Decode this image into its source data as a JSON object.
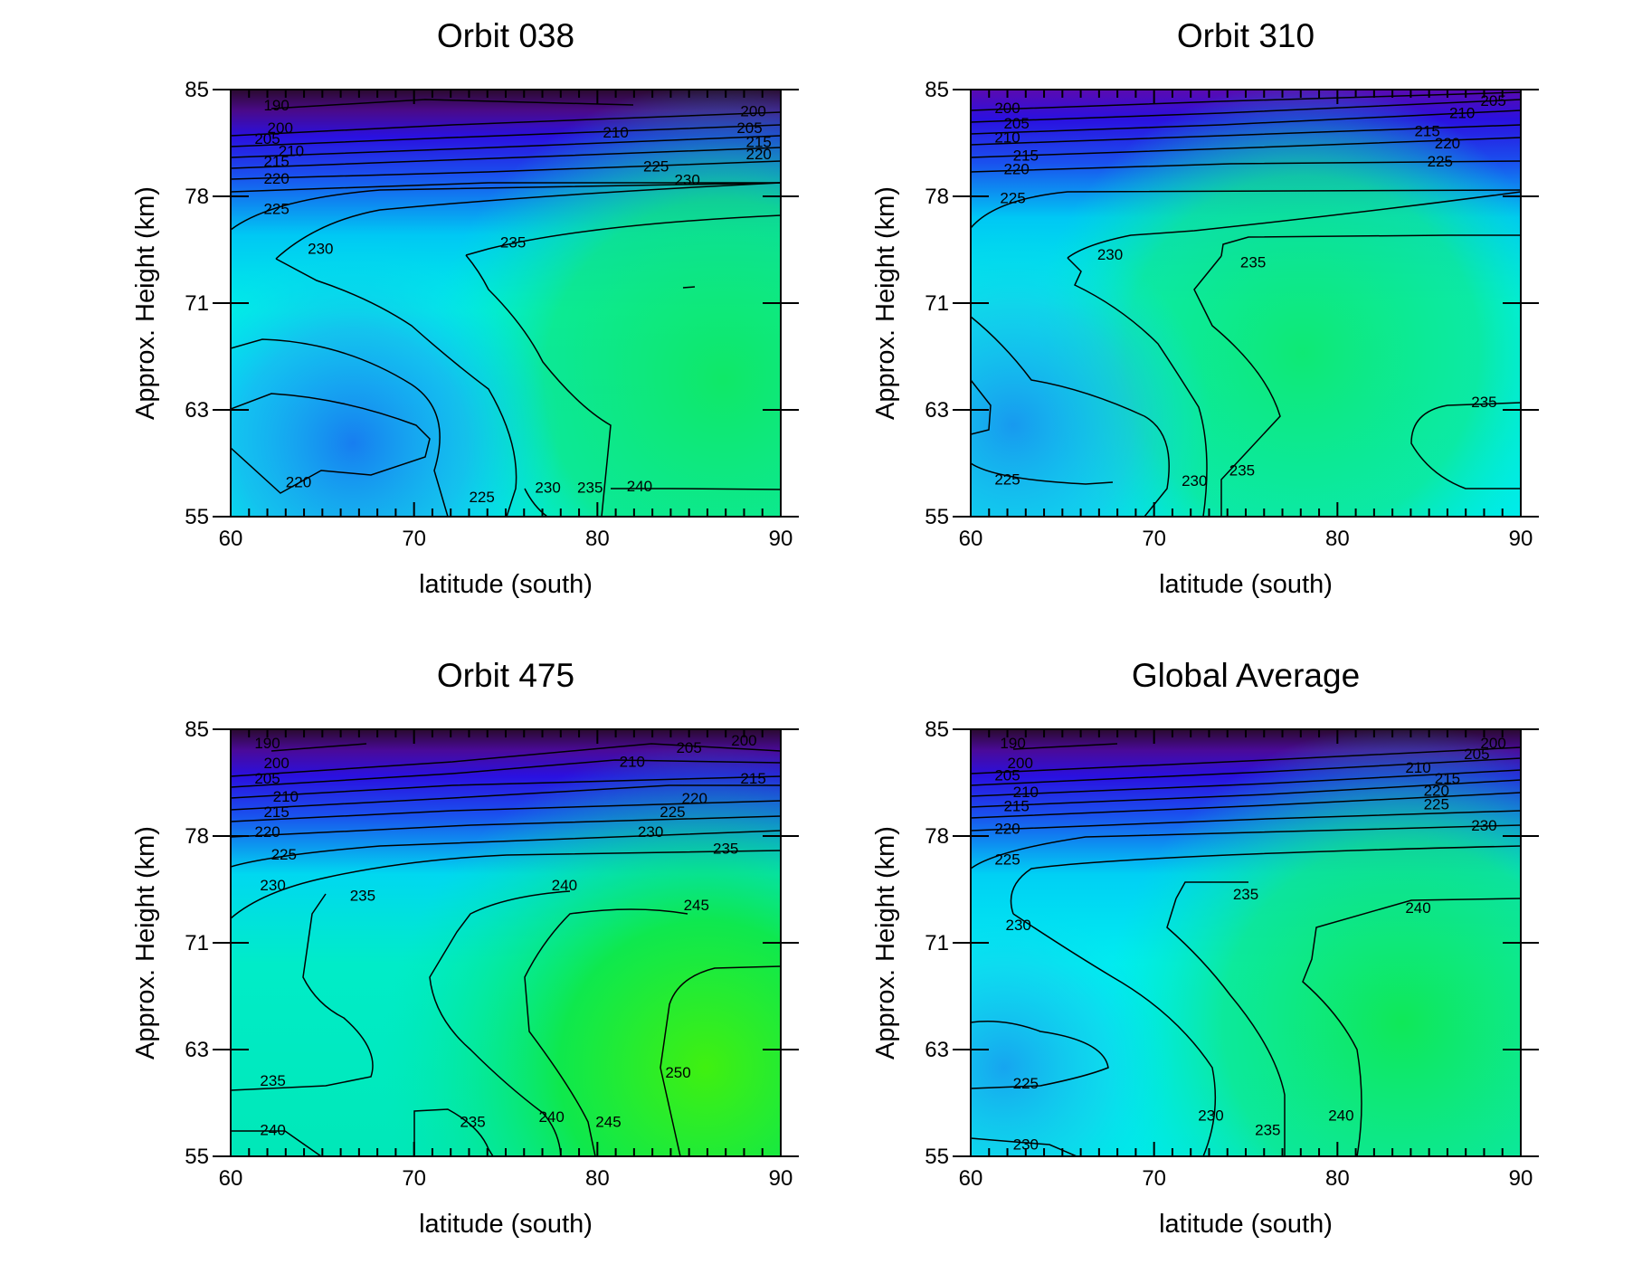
{
  "figure": {
    "type": "contour-grid",
    "colors": {
      "cold": "#2a0a2e",
      "violet": "#5a0aa8",
      "blue": "#1a22e8",
      "mid-blue": "#2a6cf0",
      "cyan": "#00f0f0",
      "green": "#00e860",
      "bright-green": "#10f010",
      "contour": "#000000"
    }
  },
  "chart_data": [
    {
      "type": "heatmap",
      "title": "Orbit 038",
      "xlabel": "latitude (south)",
      "ylabel": "Approx. Height (km)",
      "xlim": [
        60,
        90
      ],
      "ylim": [
        55,
        85
      ],
      "x_ticks": [
        "60",
        "70",
        "80",
        "90"
      ],
      "y_ticks": [
        "55",
        "63",
        "71",
        "78",
        "85"
      ],
      "contour_levels": [
        190,
        200,
        205,
        210,
        215,
        220,
        225,
        230,
        235,
        240
      ],
      "contour_labels": [
        {
          "text": "190",
          "x": 62.5,
          "y": 84.0
        },
        {
          "text": "200",
          "x": 88.5,
          "y": 83.6
        },
        {
          "text": "205",
          "x": 88.3,
          "y": 82.5
        },
        {
          "text": "200",
          "x": 62.7,
          "y": 82.5
        },
        {
          "text": "205",
          "x": 62.0,
          "y": 81.8
        },
        {
          "text": "210",
          "x": 81.0,
          "y": 82.2
        },
        {
          "text": "215",
          "x": 88.8,
          "y": 81.6
        },
        {
          "text": "210",
          "x": 63.3,
          "y": 81.0
        },
        {
          "text": "220",
          "x": 88.8,
          "y": 80.8
        },
        {
          "text": "215",
          "x": 62.5,
          "y": 80.3
        },
        {
          "text": "225",
          "x": 83.2,
          "y": 80.0
        },
        {
          "text": "220",
          "x": 62.5,
          "y": 79.2
        },
        {
          "text": "230",
          "x": 84.9,
          "y": 79.1
        },
        {
          "text": "225",
          "x": 62.5,
          "y": 77.2
        },
        {
          "text": "235",
          "x": 75.4,
          "y": 75.0
        },
        {
          "text": "230",
          "x": 64.9,
          "y": 74.6
        },
        {
          "text": "220",
          "x": 63.7,
          "y": 57.6
        },
        {
          "text": "225",
          "x": 73.7,
          "y": 56.5
        },
        {
          "text": "230",
          "x": 77.3,
          "y": 57.2
        },
        {
          "text": "235",
          "x": 79.6,
          "y": 57.2
        },
        {
          "text": "240",
          "x": 82.3,
          "y": 57.3
        }
      ]
    },
    {
      "type": "heatmap",
      "title": "Orbit 310",
      "xlabel": "latitude (south)",
      "ylabel": "Approx. Height (km)",
      "xlim": [
        60,
        90
      ],
      "ylim": [
        55,
        85
      ],
      "x_ticks": [
        "60",
        "70",
        "80",
        "90"
      ],
      "y_ticks": [
        "55",
        "63",
        "71",
        "78",
        "85"
      ],
      "contour_levels": [
        200,
        205,
        210,
        215,
        220,
        225,
        230,
        235
      ],
      "contour_labels": [
        {
          "text": "205",
          "x": 88.5,
          "y": 84.3
        },
        {
          "text": "210",
          "x": 86.8,
          "y": 83.5
        },
        {
          "text": "200",
          "x": 62.0,
          "y": 83.8
        },
        {
          "text": "205",
          "x": 62.5,
          "y": 82.8
        },
        {
          "text": "215",
          "x": 84.9,
          "y": 82.3
        },
        {
          "text": "210",
          "x": 62.0,
          "y": 81.9
        },
        {
          "text": "220",
          "x": 86.0,
          "y": 81.5
        },
        {
          "text": "215",
          "x": 63.0,
          "y": 80.7
        },
        {
          "text": "225",
          "x": 85.6,
          "y": 80.3
        },
        {
          "text": "220",
          "x": 62.5,
          "y": 79.8
        },
        {
          "text": "225",
          "x": 62.3,
          "y": 77.9
        },
        {
          "text": "230",
          "x": 67.6,
          "y": 74.2
        },
        {
          "text": "235",
          "x": 75.4,
          "y": 73.7
        },
        {
          "text": "235",
          "x": 88.0,
          "y": 63.6
        },
        {
          "text": "225",
          "x": 62.0,
          "y": 57.8
        },
        {
          "text": "230",
          "x": 72.2,
          "y": 57.7
        },
        {
          "text": "235",
          "x": 74.8,
          "y": 58.5
        }
      ]
    },
    {
      "type": "heatmap",
      "title": "Orbit 475",
      "xlabel": "latitude (south)",
      "ylabel": "Approx. Height (km)",
      "xlim": [
        60,
        90
      ],
      "ylim": [
        55,
        85
      ],
      "x_ticks": [
        "60",
        "70",
        "80",
        "90"
      ],
      "y_ticks": [
        "55",
        "63",
        "71",
        "78",
        "85"
      ],
      "contour_levels": [
        190,
        200,
        205,
        210,
        215,
        220,
        225,
        230,
        235,
        240,
        245,
        250
      ],
      "contour_labels": [
        {
          "text": "190",
          "x": 62.0,
          "y": 84.1
        },
        {
          "text": "205",
          "x": 85.0,
          "y": 83.8
        },
        {
          "text": "200",
          "x": 88.0,
          "y": 84.3
        },
        {
          "text": "200",
          "x": 62.5,
          "y": 82.8
        },
        {
          "text": "210",
          "x": 81.9,
          "y": 82.9
        },
        {
          "text": "205",
          "x": 62.0,
          "y": 81.8
        },
        {
          "text": "215",
          "x": 88.5,
          "y": 81.8
        },
        {
          "text": "210",
          "x": 63.0,
          "y": 80.6
        },
        {
          "text": "220",
          "x": 85.3,
          "y": 80.5
        },
        {
          "text": "215",
          "x": 62.5,
          "y": 79.6
        },
        {
          "text": "225",
          "x": 84.1,
          "y": 79.6
        },
        {
          "text": "220",
          "x": 62.0,
          "y": 78.3
        },
        {
          "text": "230",
          "x": 82.9,
          "y": 78.3
        },
        {
          "text": "225",
          "x": 62.9,
          "y": 76.8
        },
        {
          "text": "235",
          "x": 87.0,
          "y": 77.2
        },
        {
          "text": "230",
          "x": 62.3,
          "y": 74.8
        },
        {
          "text": "235",
          "x": 67.2,
          "y": 74.1
        },
        {
          "text": "240",
          "x": 78.2,
          "y": 74.8
        },
        {
          "text": "245",
          "x": 85.4,
          "y": 73.5
        },
        {
          "text": "250",
          "x": 84.4,
          "y": 61.3
        },
        {
          "text": "235",
          "x": 62.3,
          "y": 60.7
        },
        {
          "text": "235",
          "x": 73.2,
          "y": 57.6
        },
        {
          "text": "240",
          "x": 77.5,
          "y": 58.0
        },
        {
          "text": "245",
          "x": 80.6,
          "y": 57.6
        },
        {
          "text": "240",
          "x": 62.3,
          "y": 57.0
        }
      ]
    },
    {
      "type": "heatmap",
      "title": "Global Average",
      "xlabel": "latitude (south)",
      "ylabel": "Approx. Height (km)",
      "xlim": [
        60,
        90
      ],
      "ylim": [
        55,
        85
      ],
      "x_ticks": [
        "60",
        "70",
        "80",
        "90"
      ],
      "y_ticks": [
        "55",
        "63",
        "71",
        "78",
        "85"
      ],
      "contour_levels": [
        190,
        200,
        205,
        210,
        215,
        220,
        225,
        230,
        235,
        240
      ],
      "contour_labels": [
        {
          "text": "190",
          "x": 62.3,
          "y": 84.1
        },
        {
          "text": "200",
          "x": 88.5,
          "y": 84.1
        },
        {
          "text": "205",
          "x": 87.6,
          "y": 83.4
        },
        {
          "text": "200",
          "x": 62.7,
          "y": 82.8
        },
        {
          "text": "205",
          "x": 62.0,
          "y": 82.0
        },
        {
          "text": "210",
          "x": 84.4,
          "y": 82.5
        },
        {
          "text": "215",
          "x": 86.0,
          "y": 81.8
        },
        {
          "text": "210",
          "x": 63.0,
          "y": 80.9
        },
        {
          "text": "220",
          "x": 85.4,
          "y": 81.0
        },
        {
          "text": "215",
          "x": 62.5,
          "y": 80.0
        },
        {
          "text": "225",
          "x": 85.4,
          "y": 80.1
        },
        {
          "text": "220",
          "x": 62.0,
          "y": 78.5
        },
        {
          "text": "230",
          "x": 88.0,
          "y": 78.7
        },
        {
          "text": "225",
          "x": 62.0,
          "y": 76.5
        },
        {
          "text": "235",
          "x": 75.0,
          "y": 74.2
        },
        {
          "text": "230",
          "x": 62.6,
          "y": 72.2
        },
        {
          "text": "240",
          "x": 84.4,
          "y": 73.3
        },
        {
          "text": "225",
          "x": 63.0,
          "y": 60.5
        },
        {
          "text": "230",
          "x": 73.1,
          "y": 58.1
        },
        {
          "text": "235",
          "x": 76.2,
          "y": 57.0
        },
        {
          "text": "240",
          "x": 80.2,
          "y": 58.1
        },
        {
          "text": "230",
          "x": 63.0,
          "y": 55.9
        }
      ]
    }
  ]
}
